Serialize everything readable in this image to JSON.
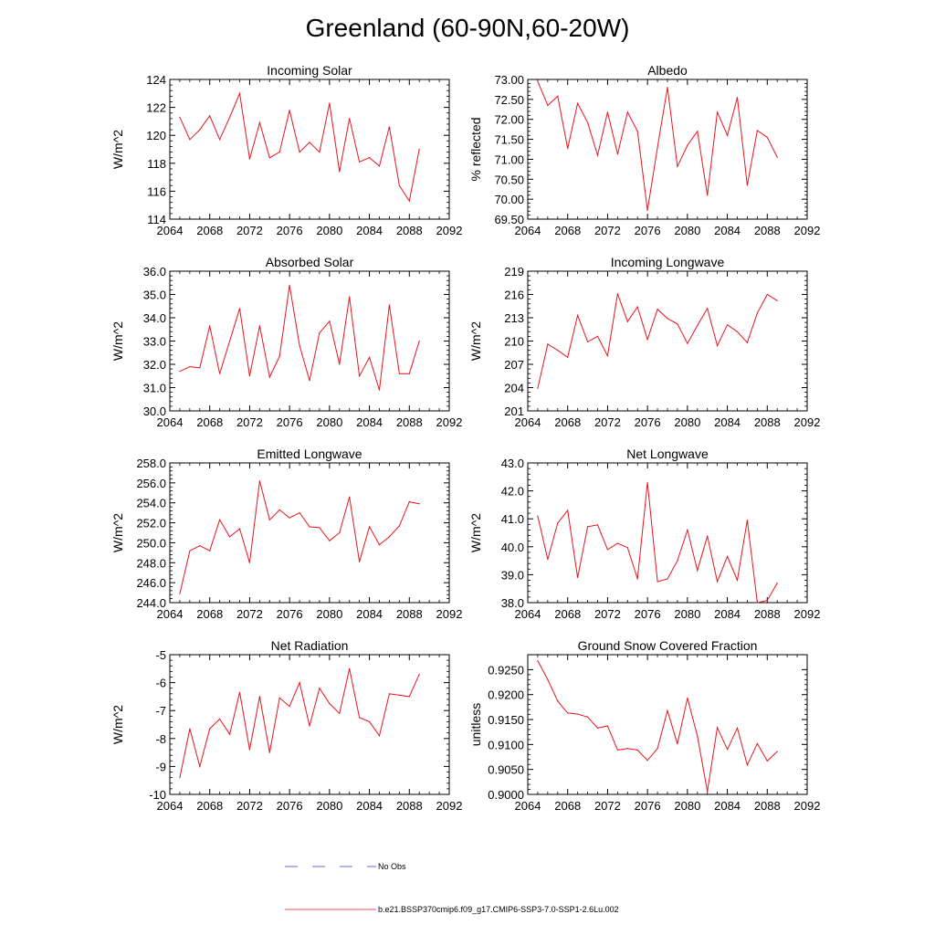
{
  "page": {
    "title": "Greenland (60-90N,60-20W)"
  },
  "colors": {
    "series": "#e8141c",
    "obs": "#3a3ad0",
    "axis": "#000000"
  },
  "legend": {
    "obs_label": "No Obs",
    "model_label": "b.e21.BSSP370cmip6.f09_g17.CMIP6-SSP3-7.0-SSP1-2.6Lu.002"
  },
  "chart_data": [
    {
      "type": "line",
      "title": "Incoming Solar",
      "ylabel": "W/m^2",
      "xlim": [
        2064,
        2092
      ],
      "ylim": [
        114,
        124
      ],
      "xticks": [
        2064,
        2068,
        2072,
        2076,
        2080,
        2084,
        2088,
        2092
      ],
      "xtick_labels": [
        "2064",
        "2068",
        "2072",
        "2076",
        "2080",
        "2084",
        "2088",
        "2092"
      ],
      "yticks": [
        114,
        116,
        118,
        120,
        122,
        124
      ],
      "ytick_labels": [
        "114",
        "116",
        "118",
        "120",
        "122",
        "124"
      ],
      "ytick_side": "left",
      "x": [
        2065,
        2066,
        2067,
        2068,
        2069,
        2070,
        2071,
        2072,
        2073,
        2074,
        2075,
        2076,
        2077,
        2078,
        2079,
        2080,
        2081,
        2082,
        2083,
        2084,
        2085,
        2086,
        2087,
        2088,
        2089
      ],
      "y": [
        121.3,
        119.7,
        120.4,
        121.4,
        119.7,
        121.3,
        123.0,
        118.3,
        120.9,
        118.4,
        118.8,
        121.8,
        118.8,
        119.5,
        118.8,
        122.3,
        117.4,
        121.2,
        118.1,
        118.4,
        117.8,
        120.6,
        116.4,
        115.3,
        119.0
      ]
    },
    {
      "type": "line",
      "title": "Albedo",
      "ylabel": "% reflected",
      "xlim": [
        2064,
        2092
      ],
      "ylim": [
        69.5,
        73.0
      ],
      "xticks": [
        2064,
        2068,
        2072,
        2076,
        2080,
        2084,
        2088,
        2092
      ],
      "xtick_labels": [
        "2064",
        "2068",
        "2072",
        "2076",
        "2080",
        "2084",
        "2088",
        "2092"
      ],
      "yticks": [
        69.5,
        70.0,
        70.5,
        71.0,
        71.5,
        72.0,
        72.5,
        73.0
      ],
      "ytick_labels": [
        "69.50",
        "70.00",
        "70.50",
        "71.00",
        "71.50",
        "72.00",
        "72.50",
        "73.00"
      ],
      "ytick_side": "left",
      "x": [
        2065,
        2066,
        2067,
        2068,
        2069,
        2070,
        2071,
        2072,
        2073,
        2074,
        2075,
        2076,
        2077,
        2078,
        2079,
        2080,
        2081,
        2082,
        2083,
        2084,
        2085,
        2086,
        2087,
        2088,
        2089
      ],
      "y": [
        72.95,
        72.35,
        72.58,
        71.27,
        72.4,
        71.92,
        71.1,
        72.18,
        71.13,
        72.18,
        71.7,
        69.72,
        71.3,
        72.8,
        70.82,
        71.35,
        71.7,
        70.1,
        72.18,
        71.6,
        72.55,
        70.35,
        71.72,
        71.55,
        71.05
      ]
    },
    {
      "type": "line",
      "title": "Absorbed Solar",
      "ylabel": "W/m^2",
      "xlim": [
        2064,
        2092
      ],
      "ylim": [
        30.0,
        36.0
      ],
      "xticks": [
        2064,
        2068,
        2072,
        2076,
        2080,
        2084,
        2088,
        2092
      ],
      "xtick_labels": [
        "2064",
        "2068",
        "2072",
        "2076",
        "2080",
        "2084",
        "2088",
        "2092"
      ],
      "yticks": [
        30,
        31,
        32,
        33,
        34,
        35,
        36
      ],
      "ytick_labels": [
        "30.0",
        "31.0",
        "32.0",
        "33.0",
        "34.0",
        "35.0",
        "36.0"
      ],
      "ytick_side": "left",
      "x": [
        2065,
        2066,
        2067,
        2068,
        2069,
        2070,
        2071,
        2072,
        2073,
        2074,
        2075,
        2076,
        2077,
        2078,
        2079,
        2080,
        2081,
        2082,
        2083,
        2084,
        2085,
        2086,
        2087,
        2088,
        2089
      ],
      "y": [
        31.7,
        31.9,
        31.85,
        33.65,
        31.6,
        33.0,
        34.4,
        31.5,
        33.65,
        31.45,
        32.35,
        35.4,
        32.8,
        31.3,
        33.35,
        33.85,
        32.0,
        34.9,
        31.5,
        32.3,
        30.9,
        34.55,
        31.6,
        31.6,
        33.0
      ]
    },
    {
      "type": "line",
      "title": "Incoming Longwave",
      "ylabel": "W/m^2",
      "xlim": [
        2064,
        2092
      ],
      "ylim": [
        201,
        219
      ],
      "xticks": [
        2064,
        2068,
        2072,
        2076,
        2080,
        2084,
        2088,
        2092
      ],
      "xtick_labels": [
        "2064",
        "2068",
        "2072",
        "2076",
        "2080",
        "2084",
        "2088",
        "2092"
      ],
      "yticks": [
        201,
        204,
        207,
        210,
        213,
        216,
        219
      ],
      "ytick_labels": [
        "201",
        "204",
        "207",
        "210",
        "213",
        "216",
        "219"
      ],
      "ytick_side": "left",
      "x": [
        2065,
        2066,
        2067,
        2068,
        2069,
        2070,
        2071,
        2072,
        2073,
        2074,
        2075,
        2076,
        2077,
        2078,
        2079,
        2080,
        2081,
        2082,
        2083,
        2084,
        2085,
        2086,
        2087,
        2088,
        2089
      ],
      "y": [
        203.9,
        209.6,
        208.8,
        207.9,
        213.3,
        209.9,
        210.6,
        208.1,
        216.1,
        212.5,
        214.4,
        210.2,
        214.1,
        212.9,
        212.2,
        209.7,
        212.0,
        214.2,
        209.4,
        212.1,
        211.2,
        209.8,
        213.6,
        216.0,
        215.2
      ]
    },
    {
      "type": "line",
      "title": "Emitted Longwave",
      "ylabel": "W/m^2",
      "xlim": [
        2064,
        2092
      ],
      "ylim": [
        244.0,
        258.0
      ],
      "xticks": [
        2064,
        2068,
        2072,
        2076,
        2080,
        2084,
        2088,
        2092
      ],
      "xtick_labels": [
        "2064",
        "2068",
        "2072",
        "2076",
        "2080",
        "2084",
        "2088",
        "2092"
      ],
      "yticks": [
        244,
        246,
        248,
        250,
        252,
        254,
        256,
        258
      ],
      "ytick_labels": [
        "244.0",
        "246.0",
        "248.0",
        "250.0",
        "252.0",
        "254.0",
        "256.0",
        "258.0"
      ],
      "ytick_side": "left",
      "x": [
        2065,
        2066,
        2067,
        2068,
        2069,
        2070,
        2071,
        2072,
        2073,
        2074,
        2075,
        2076,
        2077,
        2078,
        2079,
        2080,
        2081,
        2082,
        2083,
        2084,
        2085,
        2086,
        2087,
        2088,
        2089
      ],
      "y": [
        244.9,
        249.2,
        249.7,
        249.2,
        252.3,
        250.6,
        251.4,
        248.0,
        256.2,
        252.3,
        253.3,
        252.5,
        253.0,
        251.6,
        251.5,
        250.2,
        251.0,
        254.6,
        248.1,
        251.6,
        249.8,
        250.6,
        251.7,
        254.1,
        253.9
      ]
    },
    {
      "type": "line",
      "title": "Net Longwave",
      "ylabel": "W/m^2",
      "xlim": [
        2064,
        2092
      ],
      "ylim": [
        38.0,
        43.0
      ],
      "xticks": [
        2064,
        2068,
        2072,
        2076,
        2080,
        2084,
        2088,
        2092
      ],
      "xtick_labels": [
        "2064",
        "2068",
        "2072",
        "2076",
        "2080",
        "2084",
        "2088",
        "2092"
      ],
      "yticks": [
        38,
        39,
        40,
        41,
        42,
        43
      ],
      "ytick_labels": [
        "38.0",
        "39.0",
        "40.0",
        "41.0",
        "42.0",
        "43.0"
      ],
      "ytick_side": "left",
      "x": [
        2065,
        2066,
        2067,
        2068,
        2069,
        2070,
        2071,
        2072,
        2073,
        2074,
        2075,
        2076,
        2077,
        2078,
        2079,
        2080,
        2081,
        2082,
        2083,
        2084,
        2085,
        2086,
        2087,
        2088,
        2089
      ],
      "y": [
        41.1,
        39.55,
        40.85,
        41.3,
        38.9,
        40.72,
        40.78,
        39.9,
        40.12,
        39.97,
        38.85,
        42.3,
        38.75,
        38.85,
        39.5,
        40.6,
        39.15,
        40.38,
        38.75,
        39.65,
        38.8,
        40.95,
        38.0,
        38.08,
        38.7
      ]
    },
    {
      "type": "line",
      "title": "Net Radiation",
      "ylabel": "W/m^2",
      "xlim": [
        2064,
        2092
      ],
      "ylim": [
        -10,
        -5
      ],
      "xticks": [
        2064,
        2068,
        2072,
        2076,
        2080,
        2084,
        2088,
        2092
      ],
      "xtick_labels": [
        "2064",
        "2068",
        "2072",
        "2076",
        "2080",
        "2084",
        "2088",
        "2092"
      ],
      "yticks": [
        -10,
        -9,
        -8,
        -7,
        -6,
        -5
      ],
      "ytick_labels": [
        "-10",
        "-9",
        "-8",
        "-7",
        "-6",
        "-5"
      ],
      "ytick_side": "left",
      "x": [
        2065,
        2066,
        2067,
        2068,
        2069,
        2070,
        2071,
        2072,
        2073,
        2074,
        2075,
        2076,
        2077,
        2078,
        2079,
        2080,
        2081,
        2082,
        2083,
        2084,
        2085,
        2086,
        2087,
        2088,
        2089
      ],
      "y": [
        -9.4,
        -7.65,
        -9.0,
        -7.65,
        -7.3,
        -7.85,
        -6.35,
        -8.4,
        -6.5,
        -8.5,
        -6.55,
        -6.85,
        -6.0,
        -7.55,
        -6.2,
        -6.75,
        -7.1,
        -5.5,
        -7.25,
        -7.4,
        -7.9,
        -6.4,
        -6.45,
        -6.5,
        -5.7
      ]
    },
    {
      "type": "line",
      "title": "Ground Snow Covered Fraction",
      "ylabel": "unitless",
      "xlim": [
        2064,
        2092
      ],
      "ylim": [
        0.9,
        0.928
      ],
      "xticks": [
        2064,
        2068,
        2072,
        2076,
        2080,
        2084,
        2088,
        2092
      ],
      "xtick_labels": [
        "2064",
        "2068",
        "2072",
        "2076",
        "2080",
        "2084",
        "2088",
        "2092"
      ],
      "yticks": [
        0.9,
        0.905,
        0.91,
        0.915,
        0.92,
        0.925
      ],
      "ytick_labels": [
        "0.9000",
        "0.9050",
        "0.9100",
        "0.9150",
        "0.9200",
        "0.9250"
      ],
      "ytick_side": "left",
      "x": [
        2065,
        2066,
        2067,
        2068,
        2069,
        2070,
        2071,
        2072,
        2073,
        2074,
        2075,
        2076,
        2077,
        2078,
        2079,
        2080,
        2081,
        2082,
        2083,
        2084,
        2085,
        2086,
        2087,
        2088,
        2089
      ],
      "y": [
        0.9268,
        0.923,
        0.9187,
        0.9163,
        0.9161,
        0.9155,
        0.9133,
        0.9137,
        0.9089,
        0.9092,
        0.9089,
        0.9068,
        0.9092,
        0.9168,
        0.9101,
        0.9193,
        0.9117,
        0.9006,
        0.9134,
        0.909,
        0.9133,
        0.9059,
        0.9102,
        0.9067,
        0.9086
      ]
    }
  ]
}
